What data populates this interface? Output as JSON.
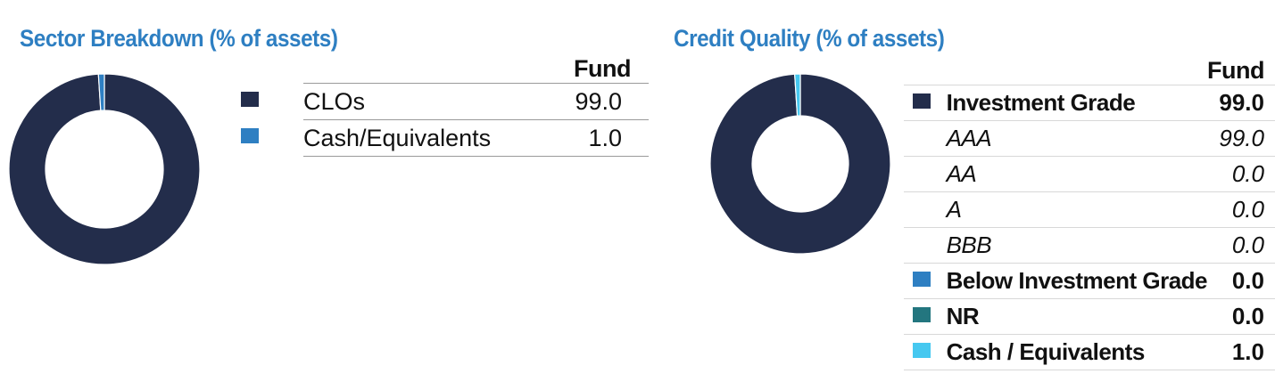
{
  "chart_data": [
    {
      "type": "pie",
      "title": "Sector Breakdown (% of assets)",
      "column_header": "Fund",
      "series": [
        {
          "name": "CLOs",
          "value": 99.0,
          "value_label": "99.0",
          "color": "#232d4b"
        },
        {
          "name": "Cash/Equivalents",
          "value": 1.0,
          "value_label": "1.0",
          "color": "#2e7fc2"
        }
      ]
    },
    {
      "type": "pie",
      "title": "Credit Quality (% of assets)",
      "column_header": "Fund",
      "series": [
        {
          "name": "Investment Grade",
          "value": 99.0,
          "value_label": "99.0",
          "color": "#232d4b",
          "style": "bold"
        },
        {
          "name": "AAA",
          "value": 99.0,
          "value_label": "99.0",
          "style": "sub"
        },
        {
          "name": "AA",
          "value": 0.0,
          "value_label": "0.0",
          "style": "sub"
        },
        {
          "name": "A",
          "value": 0.0,
          "value_label": "0.0",
          "style": "sub"
        },
        {
          "name": "BBB",
          "value": 0.0,
          "value_label": "0.0",
          "style": "sub"
        },
        {
          "name": "Below Investment Grade",
          "value": 0.0,
          "value_label": "0.0",
          "color": "#2e7fc2",
          "style": "bold"
        },
        {
          "name": "NR",
          "value": 0.0,
          "value_label": "0.0",
          "color": "#23767f",
          "style": "bold"
        },
        {
          "name": "Cash / Equivalents",
          "value": 1.0,
          "value_label": "1.0",
          "color": "#46c8f0",
          "style": "bold"
        }
      ]
    }
  ]
}
